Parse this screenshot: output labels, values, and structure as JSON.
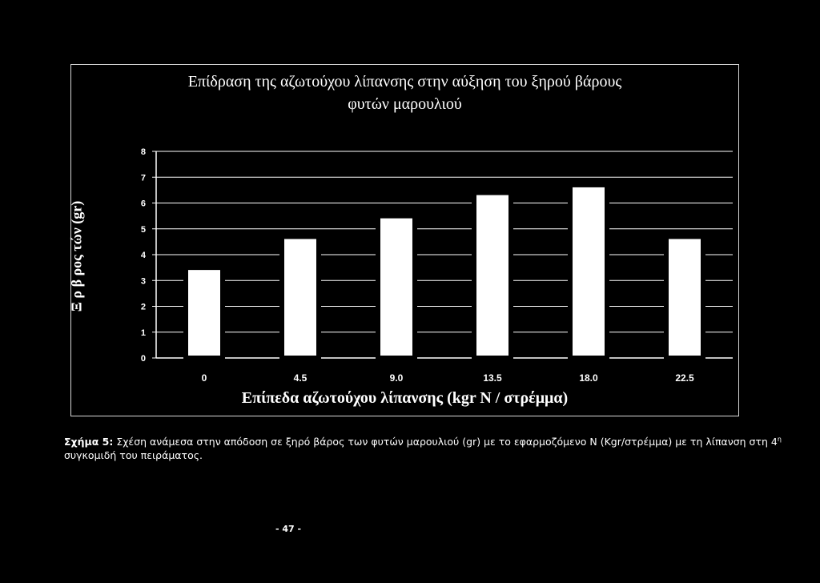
{
  "chart_data": {
    "type": "bar",
    "title_line1": "Επίδραση της αζωτούχου λίπανσης στην αύξηση του ξηρού βάρους",
    "title_line2": "φυτών μαρουλιού",
    "xlabel": "Επίπεδα αζωτούχου λίπανσης (kgr N / στρέμμα)",
    "ylabel": "Ξ ρ β ρος τών (gr)",
    "categories": [
      "0",
      "4.5",
      "9.0",
      "13.5",
      "18.0",
      "22.5"
    ],
    "values": [
      3.5,
      4.7,
      5.5,
      6.4,
      6.7,
      4.7
    ],
    "yticks": [
      "0",
      "1",
      "2",
      "3",
      "4",
      "5",
      "6",
      "7",
      "8"
    ],
    "ylim": [
      0,
      8
    ],
    "grid": true,
    "colors": {
      "bar_fill": "#ffffff",
      "bar_stroke": "#000000",
      "axis": "#ffffff",
      "background": "#000000"
    }
  },
  "caption": {
    "label": "Σχήμα 5:",
    "text": " Σχέση ανάμεσα στην απόδοση σε ξηρό βάρος των φυτών μαρουλιού (gr) με το εφαρμοζόμενο Ν (Kgr/στρέμμα) με τη λίπανση  στη 4",
    "superscript": "η",
    "text2": "συγκομιδή του πειράματος."
  },
  "page_number": "- 47 -"
}
